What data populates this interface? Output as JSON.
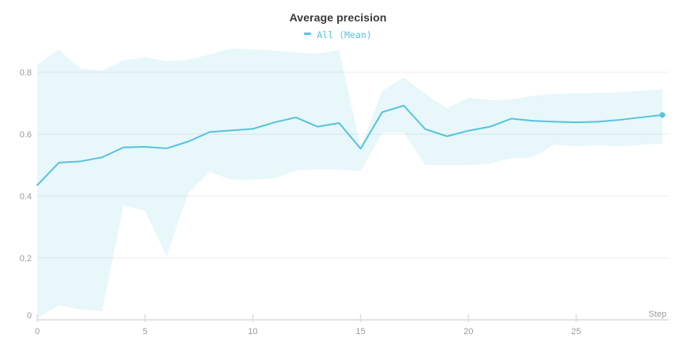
{
  "chart": {
    "title": "Average precision",
    "legend": {
      "label": "All (Mean)",
      "color": "#56c3dc"
    },
    "xlabel": "Step"
  },
  "chart_data": {
    "type": "line",
    "title": "Average precision",
    "xlabel": "Step",
    "ylabel": "",
    "legend_position": "top-center",
    "grid": "horizontal",
    "xlim": [
      0,
      29.3
    ],
    "ylim": [
      0,
      0.9
    ],
    "xticks": [
      0,
      5,
      10,
      15,
      20,
      25
    ],
    "yticks": [
      0,
      0.2,
      0.4,
      0.6,
      0.8
    ],
    "x": [
      0,
      1,
      2,
      3,
      4,
      5,
      6,
      7,
      8,
      9,
      10,
      11,
      12,
      13,
      14,
      15,
      16,
      17,
      18,
      19,
      20,
      21,
      22,
      23,
      24,
      25,
      26,
      27,
      28,
      29
    ],
    "series": [
      {
        "name": "All (Mean)",
        "color": "#56c3dc",
        "band_fill": "rgba(86,195,220,0.14)",
        "values": [
          0.435,
          0.508,
          0.512,
          0.525,
          0.557,
          0.559,
          0.554,
          0.576,
          0.607,
          0.612,
          0.617,
          0.638,
          0.654,
          0.624,
          0.636,
          0.553,
          0.671,
          0.692,
          0.616,
          0.593,
          0.611,
          0.624,
          0.65,
          0.643,
          0.64,
          0.638,
          0.64,
          0.646,
          0.654,
          0.662
        ],
        "band_upper": [
          0.825,
          0.872,
          0.812,
          0.805,
          0.838,
          0.849,
          0.835,
          0.84,
          0.857,
          0.877,
          0.874,
          0.87,
          0.863,
          0.86,
          0.872,
          0.557,
          0.74,
          0.783,
          0.73,
          0.684,
          0.717,
          0.71,
          0.712,
          0.724,
          0.73,
          0.732,
          0.733,
          0.735,
          0.74,
          0.745
        ],
        "band_lower": [
          0.005,
          0.047,
          0.034,
          0.028,
          0.37,
          0.353,
          0.205,
          0.41,
          0.478,
          0.453,
          0.453,
          0.457,
          0.483,
          0.487,
          0.486,
          0.48,
          0.605,
          0.605,
          0.5,
          0.5,
          0.5,
          0.505,
          0.522,
          0.525,
          0.567,
          0.561,
          0.564,
          0.561,
          0.565,
          0.57
        ],
        "end_marker": true
      }
    ],
    "axis_color": "#e3e3e3",
    "gridline_color": "#ececec",
    "tick_color": "#dedede",
    "label_color": "#9b9b9b"
  }
}
